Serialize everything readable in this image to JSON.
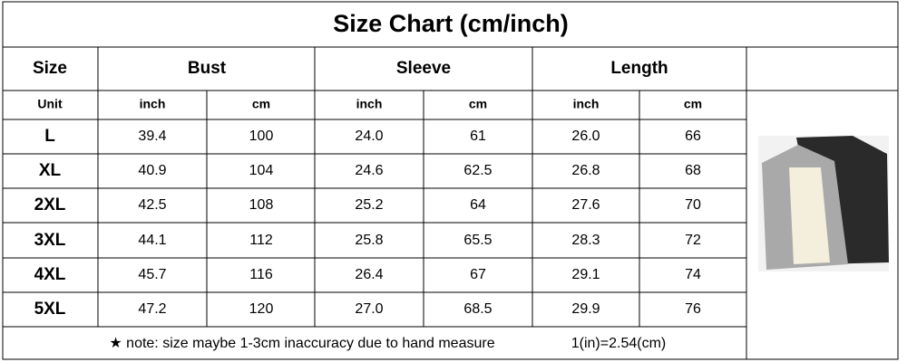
{
  "title": "Size Chart (cm/inch)",
  "header": [
    "Size",
    "Bust",
    "Sleeve",
    "Length"
  ],
  "units": [
    "Unit",
    "inch",
    "cm",
    "inch",
    "cm",
    "inch",
    "cm"
  ],
  "rows": [
    [
      "L",
      "39.4",
      "100",
      "24.0",
      "61",
      "26.0",
      "66"
    ],
    [
      "XL",
      "40.9",
      "104",
      "24.6",
      "62.5",
      "26.8",
      "68"
    ],
    [
      "2XL",
      "42.5",
      "108",
      "25.2",
      "64",
      "27.6",
      "70"
    ],
    [
      "3XL",
      "44.1",
      "112",
      "25.8",
      "65.5",
      "28.3",
      "72"
    ],
    [
      "4XL",
      "45.7",
      "116",
      "26.4",
      "67",
      "29.1",
      "74"
    ],
    [
      "5XL",
      "47.2",
      "120",
      "27.0",
      "68.5",
      "29.9",
      "76"
    ]
  ],
  "note": "★ note: size maybe 1-3cm inaccuracy due to hand measure",
  "conversion": "1(in)=2.54(cm)"
}
